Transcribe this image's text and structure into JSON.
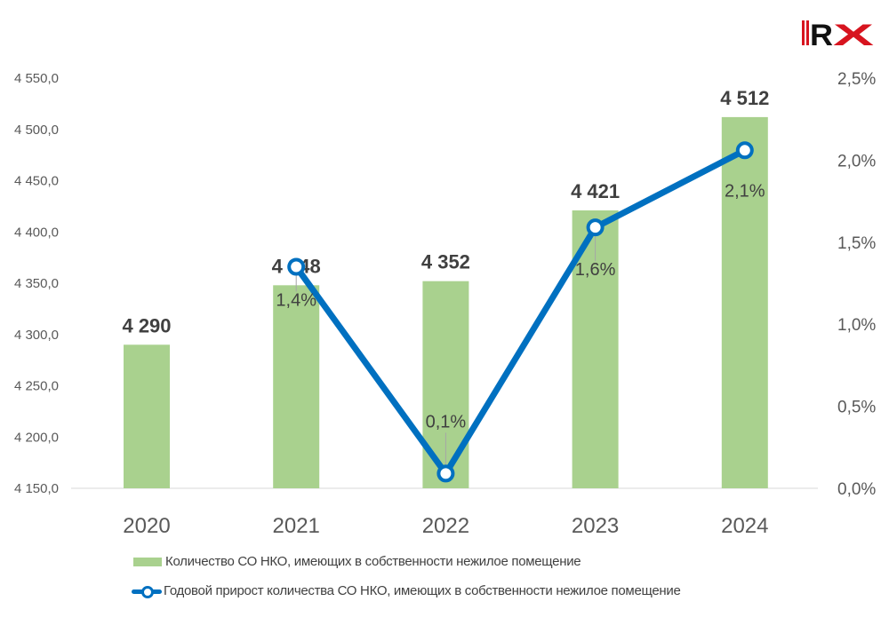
{
  "logo_text": "RX",
  "chart_data": {
    "type": "bar+line",
    "categories": [
      "2020",
      "2021",
      "2022",
      "2023",
      "2024"
    ],
    "series": [
      {
        "name": "Количество СО НКО, имеющих в собственности нежилое помещение",
        "type": "bar",
        "axis": "left",
        "color": "#a9d18e",
        "values": [
          4290,
          4348,
          4352,
          4421,
          4512
        ],
        "labels": [
          "4 290",
          "4 348",
          "4 352",
          "4 421",
          "4 512"
        ]
      },
      {
        "name": "Годовой прирост количества СО НКО, имеющих в собственности нежилое помещение",
        "type": "line",
        "axis": "right",
        "color": "#0070c0",
        "values": [
          null,
          1.35,
          0.09,
          1.59,
          2.06
        ],
        "labels": [
          null,
          "1,4%",
          "0,1%",
          "1,6%",
          "2,1%"
        ]
      }
    ],
    "y_left": {
      "min": 4150,
      "max": 4550,
      "ticks": [
        "4 150,0",
        "4 200,0",
        "4 250,0",
        "4 300,0",
        "4 350,0",
        "4 400,0",
        "4 450,0",
        "4 500,0",
        "4 550,0"
      ]
    },
    "y_right": {
      "min": 0,
      "max": 2.5,
      "ticks": [
        "0,0%",
        "0,5%",
        "1,0%",
        "1,5%",
        "2,0%",
        "2,5%"
      ]
    },
    "grid": false,
    "legend_position": "bottom"
  }
}
